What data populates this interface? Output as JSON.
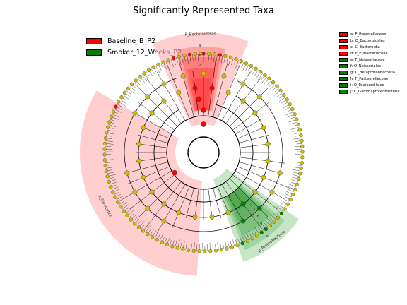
{
  "title": "Significantly Represented Taxa",
  "legend": [
    {
      "label": "Baseline_B_P2",
      "color": "#ff0000"
    },
    {
      "label": "Smoker_12_Weeks_P2",
      "color": "#008000"
    }
  ],
  "key": [
    {
      "label": "a: F_Prevotellaceae",
      "group": 0
    },
    {
      "label": "b: O_Bacteroidales",
      "group": 0
    },
    {
      "label": "c: C_Bacteroidia",
      "group": 0
    },
    {
      "label": "d: F_Eubacteriaceae",
      "group": 0
    },
    {
      "label": "e: F_Neisseriaceae",
      "group": 1
    },
    {
      "label": "f: O_Neisseriales",
      "group": 1
    },
    {
      "label": "g: C_Betaproteobacteria",
      "group": 1
    },
    {
      "label": "h: F_Pasteurellaceae",
      "group": 1
    },
    {
      "label": "i: O_Pasteurellales",
      "group": 1
    },
    {
      "label": "j: C_Gammaproteobacteria",
      "group": 1
    }
  ],
  "sectors": [
    {
      "name": "sector-bacteroidetes",
      "label": "P_Bacteroidetes",
      "group": 0,
      "start": 335,
      "end": 22
    },
    {
      "name": "sector-firmicutes",
      "label": "p_Firmicutes",
      "group": 0,
      "start": 183,
      "end": 300
    },
    {
      "name": "sector-proteobacteria",
      "label": "p_Proteobacteria",
      "group": 1,
      "start": 125,
      "end": 160
    }
  ],
  "inner_labels": [
    "a",
    "b",
    "c"
  ],
  "green_labels": [
    "e",
    "f",
    "g",
    "h",
    "i",
    "j"
  ],
  "colors": {
    "node": "#c8c000",
    "red": "#ff0000",
    "green": "#008000",
    "red_fill": "#ffb3b3",
    "green_fill": "#a8d8a8"
  }
}
